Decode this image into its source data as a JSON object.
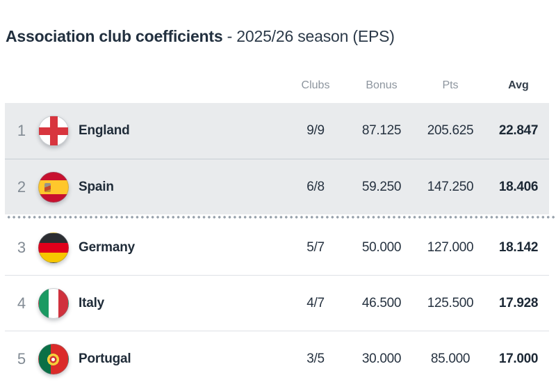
{
  "title": {
    "main": "Association club coefficients",
    "suffix": "- 2025/26 season (EPS)"
  },
  "table": {
    "columns": {
      "clubs": "Clubs",
      "bonus": "Bonus",
      "pts": "Pts",
      "avg": "Avg"
    },
    "rows": [
      {
        "rank": "1",
        "country": "England",
        "flag": "england-flag",
        "clubs": "9/9",
        "bonus": "87.125",
        "pts": "205.625",
        "avg": "22.847",
        "highlighted": true
      },
      {
        "rank": "2",
        "country": "Spain",
        "flag": "spain-flag",
        "clubs": "6/8",
        "bonus": "59.250",
        "pts": "147.250",
        "avg": "18.406",
        "highlighted": true
      },
      {
        "rank": "3",
        "country": "Germany",
        "flag": "germany-flag",
        "clubs": "5/7",
        "bonus": "50.000",
        "pts": "127.000",
        "avg": "18.142",
        "highlighted": false
      },
      {
        "rank": "4",
        "country": "Italy",
        "flag": "italy-flag",
        "clubs": "4/7",
        "bonus": "46.500",
        "pts": "125.500",
        "avg": "17.928",
        "highlighted": false
      },
      {
        "rank": "5",
        "country": "Portugal",
        "flag": "portugal-flag",
        "clubs": "3/5",
        "bonus": "30.000",
        "pts": "85.000",
        "avg": "17.000",
        "highlighted": false
      }
    ],
    "qualification_cutoff_after_rank": 2
  },
  "colors": {
    "highlight_row_bg": "#e9ebed",
    "highlight_row_border": "#c7cdd3",
    "row_border": "#dde1e5",
    "header_text": "#8d959e",
    "avg_header_text": "#333e4a",
    "title_text": "#22303f",
    "rank_text": "#828b94",
    "value_text": "#263240",
    "dotted_separator": "#96a0aa"
  }
}
